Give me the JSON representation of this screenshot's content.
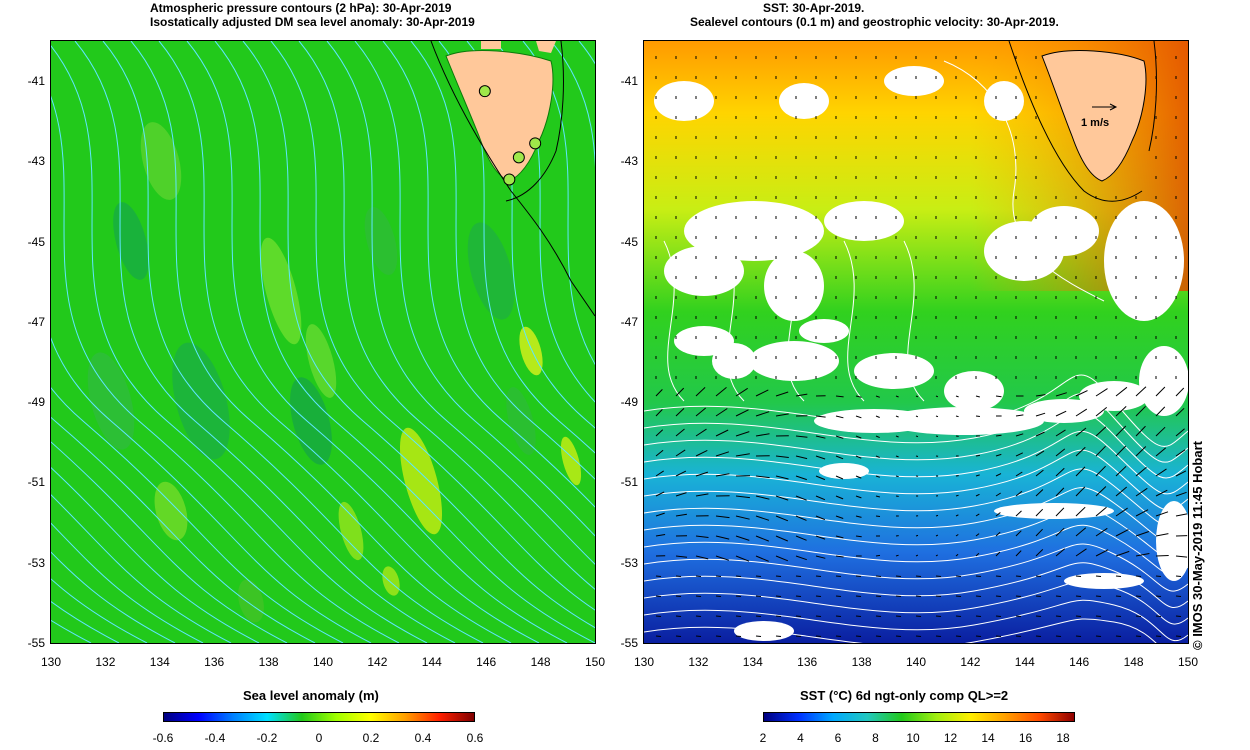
{
  "left_panel": {
    "title_line1": "Atmospheric pressure contours (2 hPa): 30-Apr-2019",
    "title_line2": "Isostatically adjusted DM sea level anomaly: 30-Apr-2019",
    "colorbar_title": "Sea level anomaly (m)",
    "colorbar_ticks": [
      "-0.6",
      "-0.4",
      "-0.2",
      "0",
      "0.2",
      "0.4",
      "0.6"
    ],
    "background_color": "#22c91b",
    "contour_color": "#5fe6ff",
    "land_color": "#ffc89a",
    "stations": [
      {
        "lon": 145.95,
        "lat": -41.25
      },
      {
        "lon": 147.8,
        "lat": -42.55
      },
      {
        "lon": 147.2,
        "lat": -42.9
      },
      {
        "lon": 146.85,
        "lat": -43.45
      }
    ]
  },
  "right_panel": {
    "title_line1": "SST: 30-Apr-2019.",
    "title_line2": "Sealevel contours (0.1 m) and geostrophic velocity: 30-Apr-2019.",
    "colorbar_title": "SST (°C) 6d ngt-only comp QL>=2",
    "colorbar_ticks": [
      "2",
      "4",
      "6",
      "8",
      "10",
      "12",
      "14",
      "16",
      "18"
    ],
    "velocity_scale_label": "1 m/s",
    "land_color": "#ffc89a",
    "cloud_color": "#ffffff",
    "contour_color": "#ffffff"
  },
  "axes": {
    "lon_ticks": [
      "130",
      "132",
      "134",
      "136",
      "138",
      "140",
      "142",
      "144",
      "146",
      "148",
      "150"
    ],
    "lat_ticks": [
      "-41",
      "-43",
      "-45",
      "-47",
      "-49",
      "-51",
      "-53",
      "-55"
    ],
    "lon_range": [
      130,
      150
    ],
    "lat_range": [
      -55,
      -40
    ]
  },
  "credit": "© IMOS 30-May-2019 11:45 Hobart"
}
